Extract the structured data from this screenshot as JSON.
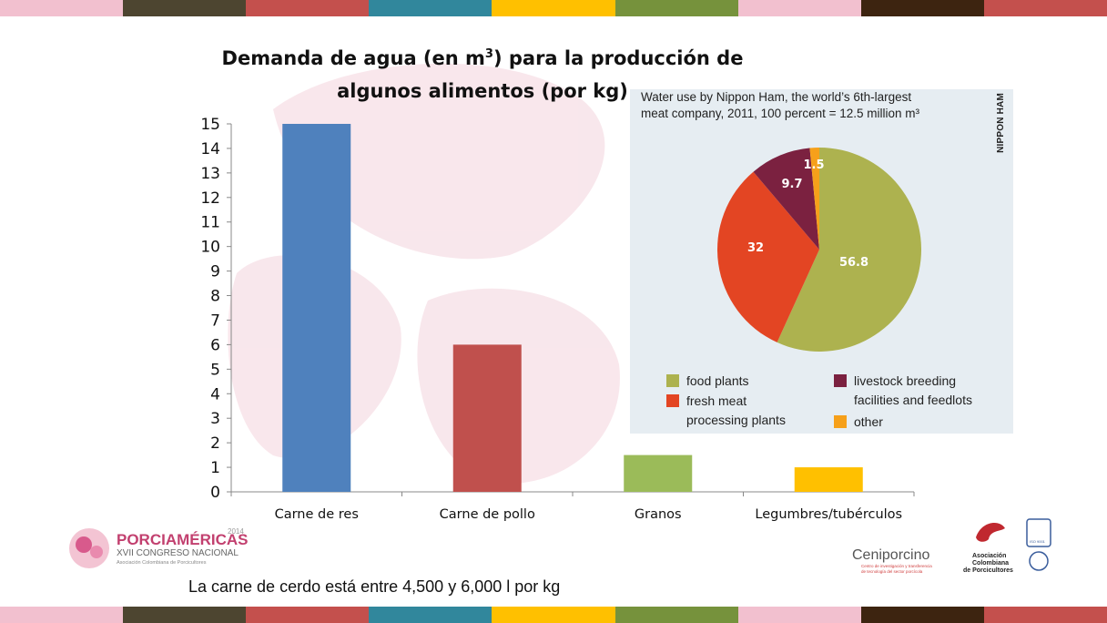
{
  "title_main": "Demanda de agua (en m",
  "title_sup": "3",
  "title_rest": ") para la producción de",
  "title_line2": "algunos alimentos (por kg)",
  "chart_data": [
    {
      "type": "bar",
      "title": "Demanda de agua (en m3) para la producción de algunos alimentos (por kg)",
      "categories": [
        "Carne de res",
        "Carne de pollo",
        "Granos",
        "Legumbres/tubérculos"
      ],
      "values": [
        15,
        6,
        1.5,
        1
      ],
      "colors": [
        "#4f81bd",
        "#c0504d",
        "#9bbb59",
        "#ffc000"
      ],
      "yticks": [
        "0",
        "1",
        "2",
        "3",
        "4",
        "5",
        "6",
        "7",
        "8",
        "9",
        "10",
        "11",
        "12",
        "13",
        "14",
        "15"
      ],
      "ylim": [
        0,
        15
      ],
      "grid": false
    },
    {
      "type": "pie",
      "title": "Water use by Nippon Ham, the world's 6th-largest meat company, 2011, 100 percent = 12.5 million m³",
      "slices": [
        {
          "label": "food plants",
          "value": 56.8,
          "text": "56.8",
          "color": "#adb24f"
        },
        {
          "label": "fresh meat processing plants",
          "value": 32,
          "text": "32",
          "color": "#e34523"
        },
        {
          "label": "livestock breeding facilities and feedlots",
          "value": 9.7,
          "text": "9.7",
          "color": "#7b2140"
        },
        {
          "label": "other",
          "value": 1.5,
          "text": "1.5",
          "color": "#f6a01a"
        }
      ]
    }
  ],
  "pie_panel": {
    "head_line1": "Water use by Nippon Ham, the world’s 6th-largest",
    "head_line2": "meat company, 2011, 100 percent = 12.5 million m³",
    "side_label": "NIPPON HAM",
    "legend": {
      "food_plants": "food plants",
      "fresh_meat_1": "fresh meat",
      "fresh_meat_2": "processing plants",
      "livestock_1": "livestock breeding",
      "livestock_2": "facilities and feedlots",
      "other": "other"
    }
  },
  "footer_note": "La carne de cerdo está entre 4,500 y 6,000 l por kg",
  "logos": {
    "porcia_name": "PORCIAMÉRICAS",
    "porcia_year": "2014",
    "porcia_sub": "XVII CONGRESO NACIONAL",
    "porcia_small": "Asociación Colombiana de Porcicultores",
    "ceni_name": "Ceniporcino",
    "ceni_small_1": "Centro de investigación y transferencia",
    "ceni_small_2": "de tecnología del sector porcícola",
    "asoc_1": "Asociación",
    "asoc_2": "Colombiana",
    "asoc_3": "de Porcicultores",
    "iso": "ISO 9001"
  },
  "stripe_colors": [
    "#f2c0cf",
    "#4d4530",
    "#c4504d",
    "#31879c",
    "#ffc000",
    "#76923c",
    "#f2c0cf",
    "#3d2410",
    "#c4504d"
  ]
}
